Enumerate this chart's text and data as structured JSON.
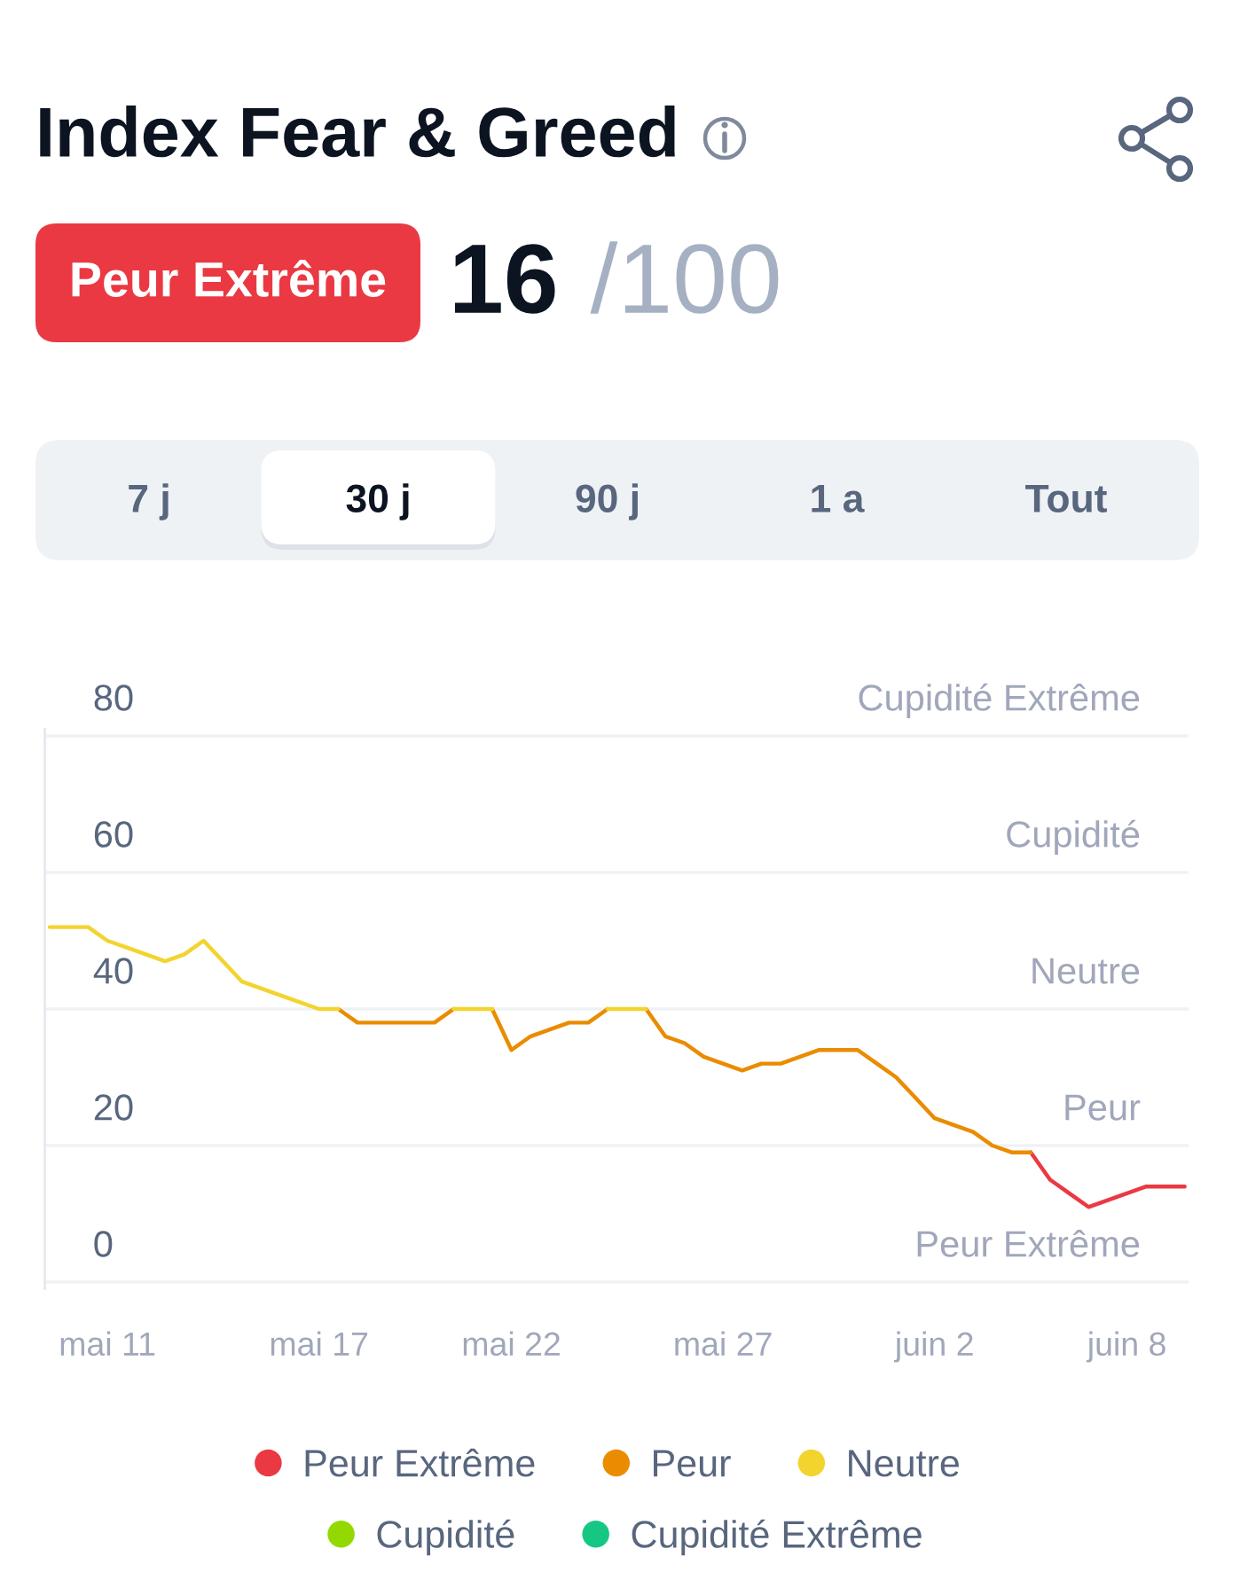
{
  "chart_data": {
    "type": "line",
    "title": "Index Fear & Greed",
    "annotations": [
      "Peur Extrême",
      "16",
      "/100",
      "7 j",
      "30 j",
      "90 j",
      "1 a",
      "Tout"
    ],
    "categories": [
      null,
      null,
      null,
      "mai 11",
      null,
      null,
      null,
      null,
      null,
      null,
      null,
      null,
      null,
      null,
      "mai 17",
      null,
      null,
      null,
      null,
      null,
      null,
      null,
      null,
      null,
      "mai 22",
      null,
      null,
      null,
      null,
      null,
      null,
      null,
      null,
      null,
      null,
      "mai 27",
      null,
      null,
      null,
      null,
      null,
      null,
      null,
      null,
      null,
      null,
      "juin 2",
      null,
      null,
      null,
      null,
      null,
      null,
      null,
      null,
      null,
      "juin 8",
      null,
      null,
      null
    ],
    "series": [
      {
        "name": "Peur Extrême",
        "color": "#ea3943",
        "values": [
          null,
          null,
          null,
          null,
          null,
          null,
          null,
          null,
          null,
          null,
          null,
          null,
          null,
          null,
          null,
          null,
          null,
          null,
          null,
          null,
          null,
          null,
          null,
          null,
          null,
          null,
          null,
          null,
          null,
          null,
          null,
          null,
          null,
          null,
          null,
          null,
          null,
          null,
          null,
          null,
          null,
          null,
          null,
          null,
          null,
          null,
          null,
          null,
          null,
          null,
          null,
          19,
          15,
          13,
          11,
          12,
          13,
          14,
          14,
          14
        ]
      },
      {
        "name": "Peur",
        "color": "#ea8c00",
        "values": [
          null,
          null,
          null,
          null,
          null,
          null,
          null,
          null,
          null,
          null,
          null,
          null,
          null,
          null,
          null,
          40,
          38,
          38,
          38,
          38,
          38,
          40,
          null,
          40,
          34,
          36,
          37,
          38,
          38,
          40,
          null,
          40,
          36,
          35,
          33,
          32,
          31,
          32,
          32,
          33,
          34,
          34,
          34,
          32,
          30,
          27,
          24,
          23,
          22,
          20,
          19,
          19,
          null,
          null,
          null,
          null,
          null,
          null,
          null,
          null
        ]
      },
      {
        "name": "Neutre",
        "color": "#f3d42f",
        "values": [
          52,
          52,
          52,
          50,
          49,
          48,
          47,
          48,
          50,
          47,
          44,
          43,
          42,
          41,
          40,
          40,
          null,
          null,
          null,
          null,
          null,
          40,
          40,
          40,
          null,
          null,
          null,
          null,
          null,
          40,
          40,
          40,
          null,
          null,
          null,
          null,
          null,
          null,
          null,
          null,
          null,
          null,
          null,
          null,
          null,
          null,
          null,
          null,
          null,
          null,
          null,
          null,
          null,
          null,
          null,
          null,
          null,
          null,
          null,
          null
        ]
      },
      {
        "name": "Cupidité",
        "color": "#93d900",
        "values": [
          null,
          null,
          null,
          null,
          null,
          null,
          null,
          null,
          null,
          null,
          null,
          null,
          null,
          null,
          null,
          null,
          null,
          null,
          null,
          null,
          null,
          null,
          null,
          null,
          null,
          null,
          null,
          null,
          null,
          null,
          null,
          null,
          null,
          null,
          null,
          null,
          null,
          null,
          null,
          null,
          null,
          null,
          null,
          null,
          null,
          null,
          null,
          null,
          null,
          null,
          null,
          null,
          null,
          null,
          null,
          null,
          null,
          null,
          null,
          null
        ]
      },
      {
        "name": "Cupidité Extrême",
        "color": "#16c784",
        "values": [
          null,
          null,
          null,
          null,
          null,
          null,
          null,
          null,
          null,
          null,
          null,
          null,
          null,
          null,
          null,
          null,
          null,
          null,
          null,
          null,
          null,
          null,
          null,
          null,
          null,
          null,
          null,
          null,
          null,
          null,
          null,
          null,
          null,
          null,
          null,
          null,
          null,
          null,
          null,
          null,
          null,
          null,
          null,
          null,
          null,
          null,
          null,
          null,
          null,
          null,
          null,
          null,
          null,
          null,
          null,
          null,
          null,
          null,
          null,
          null
        ]
      }
    ],
    "ylim": [
      -1,
      81
    ],
    "yticks": [
      0,
      20,
      40,
      60,
      80
    ],
    "ref_lines": [
      {
        "axis": "y",
        "value": 0,
        "label": "Peur Extrême",
        "color": "#eff2f5"
      },
      {
        "axis": "y",
        "value": 20,
        "label": "Peur",
        "color": "#eff2f5"
      },
      {
        "axis": "y",
        "value": 40,
        "label": "Neutre",
        "color": "#eff2f5"
      },
      {
        "axis": "y",
        "value": 60,
        "label": "Cupidité",
        "color": "#eff2f5"
      },
      {
        "axis": "y",
        "value": 80,
        "label": "Cupidité Extrême",
        "color": "#eff2f5"
      }
    ],
    "legend": "bottom"
  }
}
